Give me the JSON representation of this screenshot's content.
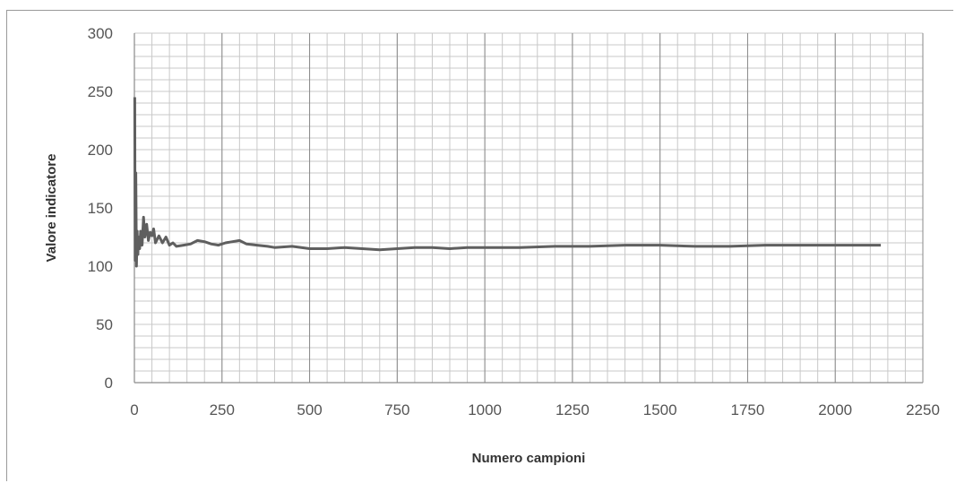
{
  "chart_data": {
    "type": "line",
    "title": "",
    "xlabel": "Numero campioni",
    "ylabel": "Valore indicatore",
    "xlim": [
      0,
      2250
    ],
    "ylim": [
      0,
      300
    ],
    "x_ticks": [
      0,
      250,
      500,
      750,
      1000,
      1250,
      1500,
      1750,
      2000,
      2250
    ],
    "y_ticks": [
      0,
      50,
      100,
      150,
      200,
      250,
      300
    ],
    "grid": true,
    "legend": "none",
    "colors": {
      "series": "#5f5f5f",
      "grid": "#c8c8c8",
      "major_grid": "#8a8a8a",
      "axis": "#8a8a8a",
      "text": "#555555"
    },
    "series": [
      {
        "x": [
          1,
          2,
          4,
          6,
          8,
          10,
          12,
          15,
          18,
          22,
          26,
          30,
          35,
          40,
          45,
          50,
          55,
          60,
          70,
          80,
          90,
          100,
          110,
          120,
          140,
          160,
          180,
          200,
          220,
          240,
          260,
          280,
          300,
          320,
          350,
          380,
          400,
          450,
          500,
          550,
          600,
          650,
          700,
          750,
          800,
          850,
          900,
          950,
          1000,
          1100,
          1200,
          1300,
          1400,
          1500,
          1600,
          1700,
          1800,
          1900,
          2000,
          2100,
          2130
        ],
        "y": [
          245,
          105,
          180,
          100,
          130,
          110,
          125,
          115,
          130,
          118,
          142,
          125,
          136,
          122,
          129,
          126,
          132,
          120,
          126,
          120,
          125,
          118,
          120,
          117,
          118,
          119,
          122,
          121,
          119,
          118,
          120,
          121,
          122,
          119,
          118,
          117,
          116,
          117,
          115,
          115,
          116,
          115,
          114,
          115,
          116,
          116,
          115,
          116,
          116,
          116,
          117,
          117,
          118,
          118,
          117,
          117,
          118,
          118,
          118,
          118,
          118
        ]
      }
    ]
  }
}
